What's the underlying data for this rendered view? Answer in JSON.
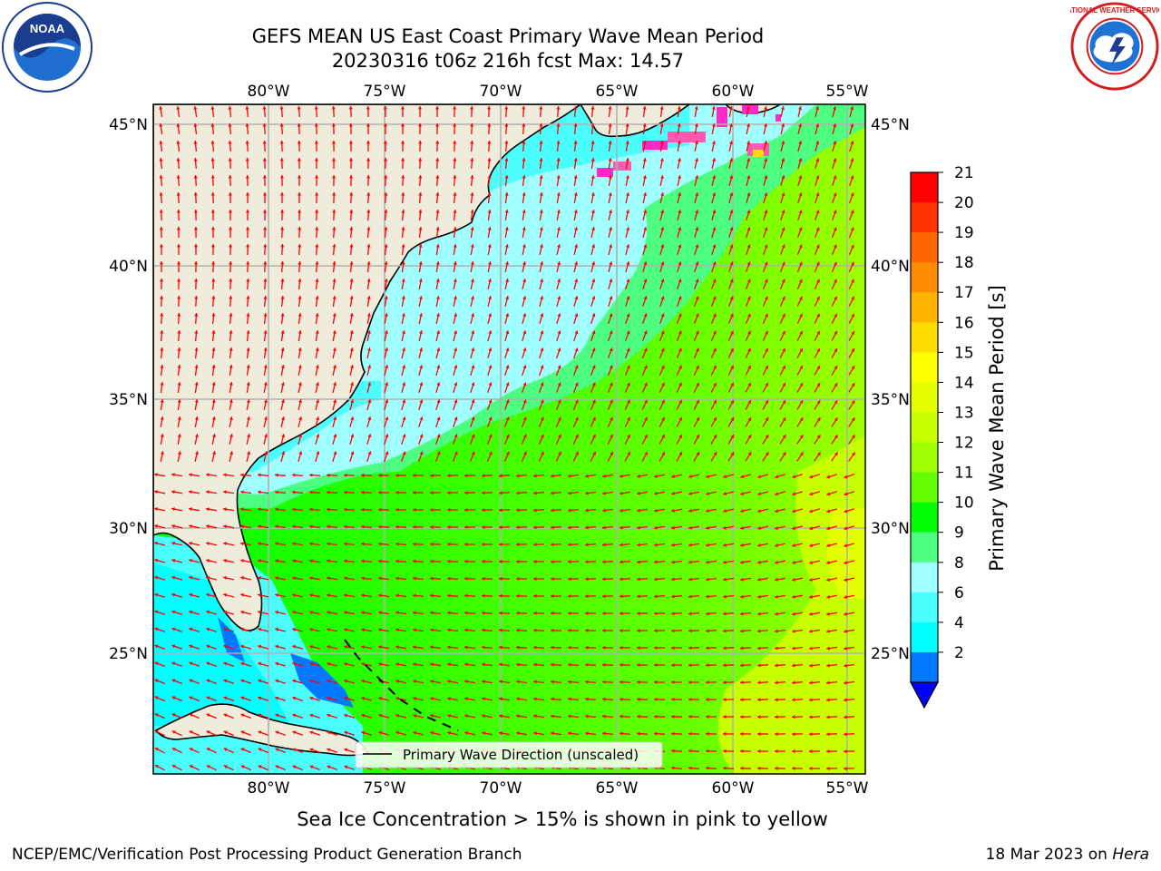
{
  "header": {
    "title_line1": "GEFS MEAN US East Coast Primary Wave Mean Period",
    "title_line2": "20230316 t06z 216h fcst   Max: 14.57"
  },
  "logos": {
    "left": {
      "name": "noaa-logo",
      "text": "NOAA"
    },
    "right": {
      "name": "nws-logo",
      "text": "NATIONAL WEATHER SERVICE"
    }
  },
  "map": {
    "lon_labels": [
      "80°W",
      "75°W",
      "70°W",
      "65°W",
      "60°W",
      "55°W"
    ],
    "lat_labels": [
      "45°N",
      "40°N",
      "35°N",
      "30°N",
      "25°N"
    ],
    "legend_label": "Primary Wave Direction (unscaled)",
    "colors": {
      "land": "#efecdc",
      "border": "#000000",
      "grid": "#b0b0b0",
      "arrow": "#ff0000"
    }
  },
  "colorbar": {
    "label": "Primary Wave Mean Period [s]",
    "ticks": [
      "21",
      "20",
      "19",
      "18",
      "17",
      "16",
      "15",
      "14",
      "13",
      "12",
      "11",
      "10",
      "9",
      "8",
      "6",
      "4",
      "2"
    ],
    "colors": [
      "#ff0000",
      "#ff3300",
      "#ff6600",
      "#ff8c00",
      "#ffb400",
      "#ffdc00",
      "#ffff00",
      "#e6ff00",
      "#c8ff00",
      "#a0ff00",
      "#64ff00",
      "#00ff00",
      "#4cff80",
      "#a0ffff",
      "#4cffff",
      "#00ffff",
      "#0078ff",
      "#0000ff"
    ]
  },
  "notes": {
    "sea_ice": "Sea Ice Concentration > 15% is shown in pink to yellow"
  },
  "footer": {
    "left": "NCEP/EMC/Verification Post Processing Product Generation Branch",
    "right_date": "18 Mar 2023 on",
    "right_host": "Hera"
  }
}
